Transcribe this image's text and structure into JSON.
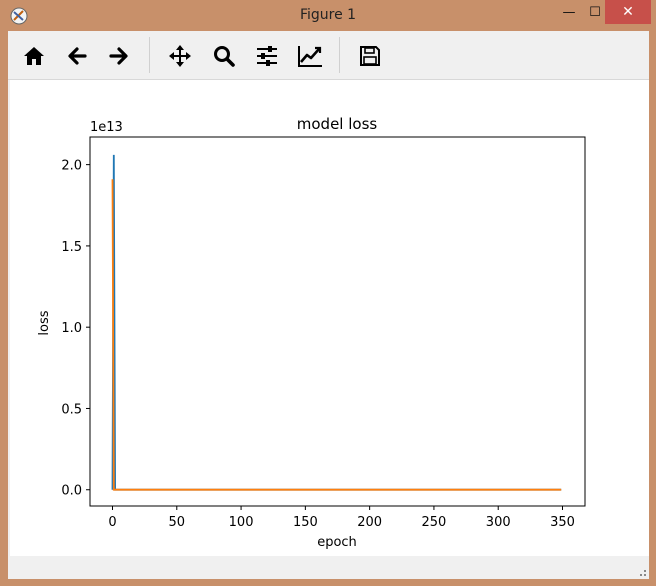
{
  "window": {
    "title": "Figure 1",
    "minimize_label": "—",
    "maximize_label": "☐",
    "close_label": "✕"
  },
  "toolbar": {
    "buttons": [
      {
        "name": "home",
        "icon": "home-icon"
      },
      {
        "name": "back",
        "icon": "arrow-left-icon"
      },
      {
        "name": "forward",
        "icon": "arrow-right-icon"
      },
      {
        "name": "pan",
        "icon": "move-icon"
      },
      {
        "name": "zoom",
        "icon": "magnifier-icon"
      },
      {
        "name": "subplots",
        "icon": "sliders-icon"
      },
      {
        "name": "customize",
        "icon": "line-chart-icon"
      },
      {
        "name": "save",
        "icon": "floppy-disk-icon"
      }
    ]
  },
  "chart_data": {
    "type": "line",
    "title": "model loss",
    "xlabel": "epoch",
    "ylabel": "loss",
    "y_offset_label": "1e13",
    "xlim": [
      -17.5,
      367.5
    ],
    "ylim": [
      -0.1,
      2.17
    ],
    "xticks": [
      0,
      50,
      100,
      150,
      200,
      250,
      300,
      350
    ],
    "yticks": [
      0.0,
      0.5,
      1.0,
      1.5,
      2.0
    ],
    "ytick_labels": [
      "0.0",
      "0.5",
      "1.0",
      "1.5",
      "2.0"
    ],
    "grid": false,
    "series": [
      {
        "color": "#1f77b4",
        "x": [
          0,
          1,
          2,
          3,
          349
        ],
        "y": [
          0.0,
          2.06,
          0.0,
          0.0,
          0.0
        ]
      },
      {
        "color": "#ff7f0e",
        "x": [
          0,
          1,
          2,
          349
        ],
        "y": [
          1.91,
          0.0,
          0.0,
          0.0
        ]
      }
    ]
  }
}
